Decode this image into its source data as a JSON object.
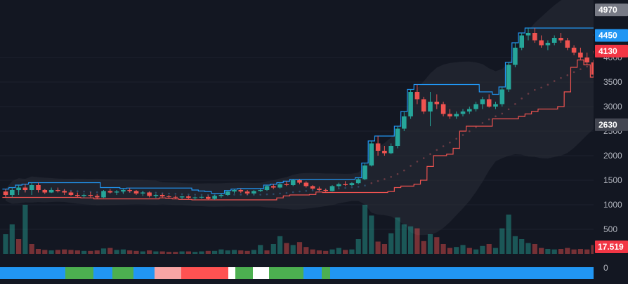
{
  "chart_data": {
    "type": "candlestick",
    "price_axis": {
      "ticks": [
        500,
        1000,
        1500,
        2000,
        2500,
        3000,
        3500,
        4000
      ],
      "ylim": [
        0,
        5050
      ]
    },
    "price_tags": [
      {
        "value": "4970",
        "price": 4970,
        "color": "#787b86"
      },
      {
        "value": "4450",
        "price": 4450,
        "color": "#2196f3"
      },
      {
        "value": "4130",
        "price": 4130,
        "color": "#f23645"
      },
      {
        "value": "2630",
        "price": 2630,
        "color": "#434651"
      }
    ],
    "volume_tag": {
      "value": "17.519",
      "color": "#f23645"
    },
    "indicator_axis": {
      "label": "0"
    },
    "colors": {
      "up": "#26a69a",
      "down": "#ef5350",
      "upper_band": "#2196f3",
      "lower_band": "#ef5350",
      "background": "#131722"
    },
    "candles": [
      [
        1270,
        1320,
        1150,
        1200
      ],
      [
        1200,
        1350,
        1150,
        1300
      ],
      [
        1300,
        1400,
        1200,
        1350
      ],
      [
        1350,
        1420,
        1250,
        1300
      ],
      [
        1300,
        1450,
        1200,
        1400
      ],
      [
        1400,
        1450,
        1250,
        1300
      ],
      [
        1300,
        1320,
        1220,
        1250
      ],
      [
        1250,
        1350,
        1240,
        1300
      ],
      [
        1300,
        1350,
        1250,
        1280
      ],
      [
        1280,
        1320,
        1200,
        1250
      ],
      [
        1250,
        1280,
        1180,
        1200
      ],
      [
        1200,
        1250,
        1150,
        1180
      ],
      [
        1180,
        1230,
        1140,
        1200
      ],
      [
        1200,
        1260,
        1150,
        1180
      ],
      [
        1180,
        1220,
        1120,
        1150
      ],
      [
        1150,
        1300,
        1140,
        1280
      ],
      [
        1280,
        1320,
        1230,
        1250
      ],
      [
        1250,
        1300,
        1200,
        1270
      ],
      [
        1270,
        1330,
        1220,
        1300
      ],
      [
        1300,
        1340,
        1250,
        1280
      ],
      [
        1280,
        1300,
        1200,
        1230
      ],
      [
        1230,
        1280,
        1180,
        1250
      ],
      [
        1250,
        1270,
        1150,
        1180
      ],
      [
        1180,
        1220,
        1140,
        1200
      ],
      [
        1200,
        1230,
        1150,
        1170
      ],
      [
        1170,
        1200,
        1130,
        1160
      ],
      [
        1160,
        1190,
        1120,
        1150
      ],
      [
        1150,
        1180,
        1110,
        1170
      ],
      [
        1170,
        1190,
        1120,
        1140
      ],
      [
        1140,
        1170,
        1100,
        1150
      ],
      [
        1150,
        1180,
        1120,
        1160
      ],
      [
        1160,
        1190,
        1100,
        1120
      ],
      [
        1120,
        1200,
        1100,
        1180
      ],
      [
        1180,
        1220,
        1140,
        1200
      ],
      [
        1200,
        1290,
        1180,
        1270
      ],
      [
        1270,
        1320,
        1230,
        1300
      ],
      [
        1300,
        1330,
        1240,
        1270
      ],
      [
        1270,
        1300,
        1200,
        1230
      ],
      [
        1230,
        1300,
        1210,
        1280
      ],
      [
        1280,
        1320,
        1260,
        1300
      ],
      [
        1300,
        1400,
        1280,
        1380
      ],
      [
        1380,
        1420,
        1320,
        1350
      ],
      [
        1350,
        1450,
        1330,
        1420
      ],
      [
        1420,
        1480,
        1380,
        1400
      ],
      [
        1400,
        1520,
        1380,
        1500
      ],
      [
        1500,
        1520,
        1420,
        1450
      ],
      [
        1450,
        1480,
        1350,
        1380
      ],
      [
        1380,
        1400,
        1300,
        1330
      ],
      [
        1330,
        1370,
        1280,
        1300
      ],
      [
        1300,
        1330,
        1250,
        1280
      ],
      [
        1280,
        1400,
        1270,
        1380
      ],
      [
        1380,
        1450,
        1350,
        1420
      ],
      [
        1420,
        1480,
        1380,
        1400
      ],
      [
        1400,
        1460,
        1380,
        1440
      ],
      [
        1440,
        1550,
        1420,
        1520
      ],
      [
        1520,
        1850,
        1500,
        1800
      ],
      [
        1800,
        2300,
        1780,
        2250
      ],
      [
        2250,
        2400,
        2000,
        2100
      ],
      [
        2100,
        2200,
        2000,
        2050
      ],
      [
        2050,
        2250,
        2030,
        2200
      ],
      [
        2200,
        2600,
        2150,
        2550
      ],
      [
        2550,
        2900,
        2500,
        2800
      ],
      [
        2800,
        3350,
        2750,
        3300
      ],
      [
        3300,
        3450,
        3050,
        3150
      ],
      [
        3150,
        3200,
        2850,
        2900
      ],
      [
        2900,
        3300,
        2600,
        3100
      ],
      [
        3100,
        3250,
        2950,
        3050
      ],
      [
        3050,
        3100,
        2800,
        2850
      ],
      [
        2850,
        2950,
        2750,
        2800
      ],
      [
        2800,
        2900,
        2750,
        2850
      ],
      [
        2850,
        2950,
        2800,
        2900
      ],
      [
        2900,
        3000,
        2850,
        2950
      ],
      [
        2950,
        3100,
        2900,
        3050
      ],
      [
        3050,
        3200,
        2950,
        3150
      ],
      [
        3150,
        3250,
        2980,
        3000
      ],
      [
        3000,
        3100,
        2950,
        3050
      ],
      [
        3050,
        3400,
        3000,
        3350
      ],
      [
        3350,
        3900,
        3300,
        3850
      ],
      [
        3850,
        4300,
        3800,
        4200
      ],
      [
        4200,
        4500,
        4150,
        4450
      ],
      [
        4450,
        4600,
        4350,
        4500
      ],
      [
        4500,
        4600,
        4300,
        4350
      ],
      [
        4350,
        4450,
        4200,
        4250
      ],
      [
        4250,
        4350,
        4150,
        4300
      ],
      [
        4300,
        4450,
        4250,
        4400
      ],
      [
        4400,
        4500,
        4300,
        4350
      ],
      [
        4350,
        4400,
        4150,
        4200
      ],
      [
        4200,
        4250,
        4050,
        4100
      ],
      [
        4100,
        4200,
        3950,
        4000
      ],
      [
        4000,
        4100,
        3850,
        3900
      ],
      [
        3900,
        3950,
        3600,
        3650
      ]
    ],
    "volume": [
      {
        "v": 40,
        "up": true
      },
      {
        "v": 60,
        "up": true
      },
      {
        "v": 30,
        "up": false
      },
      {
        "v": 100,
        "up": true
      },
      {
        "v": 20,
        "up": false
      },
      {
        "v": 10,
        "up": false
      },
      {
        "v": 8,
        "up": false
      },
      {
        "v": 7,
        "up": true
      },
      {
        "v": 8,
        "up": false
      },
      {
        "v": 9,
        "up": false
      },
      {
        "v": 8,
        "up": false
      },
      {
        "v": 7,
        "up": false
      },
      {
        "v": 6,
        "up": true
      },
      {
        "v": 6,
        "up": false
      },
      {
        "v": 7,
        "up": false
      },
      {
        "v": 11,
        "up": true
      },
      {
        "v": 12,
        "up": false
      },
      {
        "v": 8,
        "up": true
      },
      {
        "v": 9,
        "up": true
      },
      {
        "v": 7,
        "up": false
      },
      {
        "v": 6,
        "up": false
      },
      {
        "v": 5,
        "up": true
      },
      {
        "v": 7,
        "up": false
      },
      {
        "v": 5,
        "up": true
      },
      {
        "v": 5,
        "up": false
      },
      {
        "v": 4,
        "up": false
      },
      {
        "v": 4,
        "up": false
      },
      {
        "v": 5,
        "up": true
      },
      {
        "v": 5,
        "up": false
      },
      {
        "v": 4,
        "up": true
      },
      {
        "v": 5,
        "up": true
      },
      {
        "v": 6,
        "up": false
      },
      {
        "v": 6,
        "up": true
      },
      {
        "v": 9,
        "up": true
      },
      {
        "v": 7,
        "up": true
      },
      {
        "v": 8,
        "up": true
      },
      {
        "v": 7,
        "up": false
      },
      {
        "v": 6,
        "up": false
      },
      {
        "v": 8,
        "up": true
      },
      {
        "v": 18,
        "up": true
      },
      {
        "v": 7,
        "up": false
      },
      {
        "v": 20,
        "up": true
      },
      {
        "v": 36,
        "up": true
      },
      {
        "v": 22,
        "up": false
      },
      {
        "v": 18,
        "up": true
      },
      {
        "v": 24,
        "up": false
      },
      {
        "v": 14,
        "up": false
      },
      {
        "v": 9,
        "up": false
      },
      {
        "v": 7,
        "up": false
      },
      {
        "v": 6,
        "up": false
      },
      {
        "v": 9,
        "up": true
      },
      {
        "v": 12,
        "up": true
      },
      {
        "v": 8,
        "up": false
      },
      {
        "v": 9,
        "up": true
      },
      {
        "v": 30,
        "up": true
      },
      {
        "v": 100,
        "up": true
      },
      {
        "v": 78,
        "up": true
      },
      {
        "v": 25,
        "up": false
      },
      {
        "v": 20,
        "up": false
      },
      {
        "v": 42,
        "up": true
      },
      {
        "v": 74,
        "up": true
      },
      {
        "v": 60,
        "up": true
      },
      {
        "v": 56,
        "up": true
      },
      {
        "v": 52,
        "up": false
      },
      {
        "v": 26,
        "up": false
      },
      {
        "v": 40,
        "up": true
      },
      {
        "v": 34,
        "up": false
      },
      {
        "v": 20,
        "up": false
      },
      {
        "v": 12,
        "up": false
      },
      {
        "v": 14,
        "up": true
      },
      {
        "v": 18,
        "up": true
      },
      {
        "v": 12,
        "up": false
      },
      {
        "v": 9,
        "up": true
      },
      {
        "v": 16,
        "up": true
      },
      {
        "v": 20,
        "up": false
      },
      {
        "v": 12,
        "up": true
      },
      {
        "v": 52,
        "up": true
      },
      {
        "v": 80,
        "up": true
      },
      {
        "v": 36,
        "up": true
      },
      {
        "v": 30,
        "up": true
      },
      {
        "v": 22,
        "up": true
      },
      {
        "v": 20,
        "up": false
      },
      {
        "v": 12,
        "up": false
      },
      {
        "v": 10,
        "up": true
      },
      {
        "v": 9,
        "up": true
      },
      {
        "v": 10,
        "up": false
      },
      {
        "v": 12,
        "up": false
      },
      {
        "v": 9,
        "up": false
      },
      {
        "v": 10,
        "up": false
      },
      {
        "v": 9,
        "up": false
      },
      {
        "v": 18,
        "up": false
      }
    ],
    "indicator_strip": [
      {
        "to": 93,
        "color": "#2196f3"
      },
      {
        "to": 133,
        "color": "#4caf50"
      },
      {
        "to": 160,
        "color": "#2196f3"
      },
      {
        "to": 190,
        "color": "#4caf50"
      },
      {
        "to": 220,
        "color": "#2196f3"
      },
      {
        "to": 258,
        "color": "#f7a5a5"
      },
      {
        "to": 325,
        "color": "#ff5252"
      },
      {
        "to": 335,
        "color": "#ffffff"
      },
      {
        "to": 360,
        "color": "#4caf50"
      },
      {
        "to": 383,
        "color": "#ffffff"
      },
      {
        "to": 432,
        "color": "#4caf50"
      },
      {
        "to": 458,
        "color": "#2196f3"
      },
      {
        "to": 470,
        "color": "#4caf50"
      },
      {
        "to": 845,
        "color": "#2196f3"
      }
    ]
  }
}
